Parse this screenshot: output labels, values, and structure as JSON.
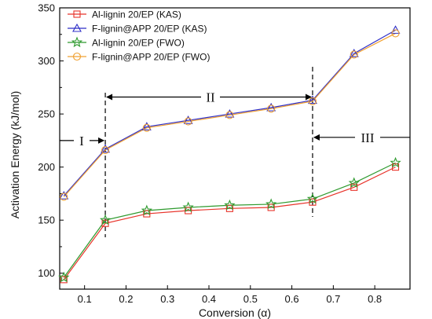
{
  "chart_data": {
    "type": "line",
    "x": [
      0.05,
      0.15,
      0.25,
      0.35,
      0.45,
      0.55,
      0.65,
      0.75,
      0.85
    ],
    "xlabel": "Conversion (α)",
    "ylabel": "Activation Energy (kJ/mol)",
    "xlim": [
      0.04,
      0.885
    ],
    "ylim": [
      85,
      350
    ],
    "xticks": [
      0.1,
      0.2,
      0.3,
      0.4,
      0.5,
      0.6,
      0.7,
      0.8
    ],
    "xtick_labels": [
      "0.1",
      "0.2",
      "0.3",
      "0.4",
      "0.5",
      "0.6",
      "0.7",
      "0.8"
    ],
    "yticks": [
      100,
      150,
      200,
      250,
      300,
      350
    ],
    "ytick_labels": [
      "100",
      "150",
      "200",
      "250",
      "300",
      "350"
    ],
    "grid": false,
    "legend_position": "top-left",
    "series": [
      {
        "name": "Al-lignin 20/EP (KAS)",
        "color": "#e8332a",
        "marker": "square",
        "values": [
          94,
          147,
          156,
          159,
          161,
          162,
          167,
          181,
          200
        ]
      },
      {
        "name": "F-lignin@APP 20/EP (KAS)",
        "color": "#2f2fc8",
        "marker": "triangle",
        "values": [
          173,
          217,
          238,
          244,
          250,
          256,
          263,
          307,
          329
        ]
      },
      {
        "name": "Al-lignin 20/EP (FWO)",
        "color": "#2e9a2e",
        "marker": "star",
        "values": [
          96,
          150,
          159,
          162,
          164,
          165,
          170,
          185,
          204
        ]
      },
      {
        "name": "F-lignin@APP 20/EP (FWO)",
        "color": "#f0a030",
        "marker": "circle",
        "values": [
          172,
          216,
          237,
          243,
          249,
          255,
          262,
          306,
          326
        ]
      }
    ],
    "regions": [
      {
        "label": "I"
      },
      {
        "label": "II"
      },
      {
        "label": "III"
      }
    ],
    "dividers_x": [
      0.15,
      0.65
    ]
  }
}
